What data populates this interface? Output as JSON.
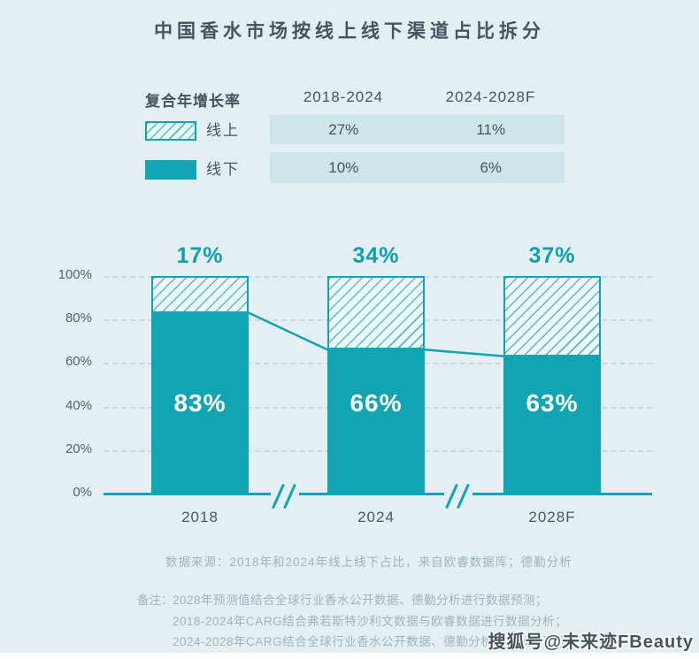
{
  "title": "中国香水市场按线上线下渠道占比拆分",
  "legend_table": {
    "row_header": "复合年增长率",
    "col_headers": [
      "2018-2024",
      "2024-2028F"
    ],
    "rows": [
      {
        "label": "线上",
        "swatch": "hatched-swatch",
        "values": [
          "27%",
          "11%"
        ]
      },
      {
        "label": "线下",
        "swatch": "solid-swatch",
        "values": [
          "10%",
          "6%"
        ]
      }
    ]
  },
  "chart_data": {
    "type": "bar",
    "stacked": true,
    "title": "中国香水市场按线上线下渠道占比拆分",
    "categories": [
      "2018",
      "2024",
      "2028F"
    ],
    "series": [
      {
        "name": "线下",
        "style": "solid",
        "values": [
          83,
          66,
          63
        ],
        "labels": [
          "83%",
          "66%",
          "63%"
        ]
      },
      {
        "name": "线上",
        "style": "hatched",
        "values": [
          17,
          34,
          37
        ],
        "labels": [
          "17%",
          "34%",
          "37%"
        ]
      }
    ],
    "bar_top_labels": [
      "17%",
      "34%",
      "37%"
    ],
    "y_ticks": [
      "100%",
      "80%",
      "60%",
      "40%",
      "20%",
      "0%"
    ],
    "ylim": [
      0,
      100
    ],
    "grid": "dashed-horizontal",
    "axis_breaks_between_bars": true,
    "trend_line": {
      "follows_series": "线下",
      "values": [
        83,
        66,
        63
      ]
    }
  },
  "footer": {
    "source": "数据来源：2018年和2024年线上线下占比，来自欧睿数据库；德勤分析",
    "note_label": "备注：",
    "notes": [
      "2028年预测值结合全球行业香水公开数据、德勤分析进行数据预测；",
      "2018-2024年CARG结合弗若斯特沙利文数据与欧睿数据进行数据分析；",
      "2024-2028年CARG结合全球行业香水公开数据、德勤分析进行数据预测"
    ]
  },
  "watermark": "搜狐号@未来迹FBeauty",
  "colors": {
    "teal": "#11a4b3",
    "background": "#e3eff3",
    "legend_band": "#cee6ea",
    "hatch_fill": "#edf8f9",
    "dark_text": "#45545f",
    "muted_text": "#9fb4bd",
    "gridline": "#c9dade",
    "bar_value_text": "#ffffff"
  }
}
